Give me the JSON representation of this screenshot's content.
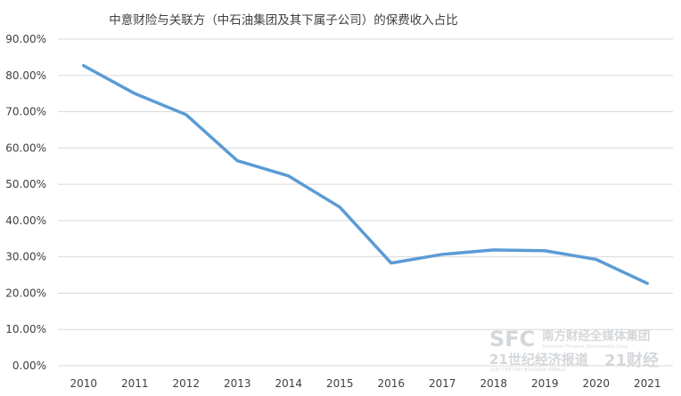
{
  "chart_data": {
    "type": "line",
    "title": "中意财险与关联方（中石油集团及其下属子公司）的保费收入占比",
    "xlabel": "",
    "ylabel": "",
    "categories": [
      "2010",
      "2011",
      "2012",
      "2013",
      "2014",
      "2015",
      "2016",
      "2017",
      "2018",
      "2019",
      "2020",
      "2021"
    ],
    "series": [
      {
        "values": [
          82.7,
          75.0,
          69.2,
          56.5,
          52.3,
          43.7,
          28.3,
          30.7,
          31.9,
          31.7,
          29.3,
          22.7
        ],
        "color": "#5b9bd5"
      }
    ],
    "ylim": [
      0,
      90
    ],
    "yticks": [
      "0.00%",
      "10.00%",
      "20.00%",
      "30.00%",
      "40.00%",
      "50.00%",
      "60.00%",
      "70.00%",
      "80.00%",
      "90.00%"
    ],
    "grid": true,
    "legend": "none"
  },
  "watermark": {
    "logo": "SFC",
    "group_name": "南方财经全媒体集团",
    "group_name_en": "Southern Finance Omnimedia Corp.",
    "paper_name": "21世纪经济报道",
    "paper_name_en": "21ST CENTURY BUSINESS HERALD",
    "brand": "21财经"
  }
}
